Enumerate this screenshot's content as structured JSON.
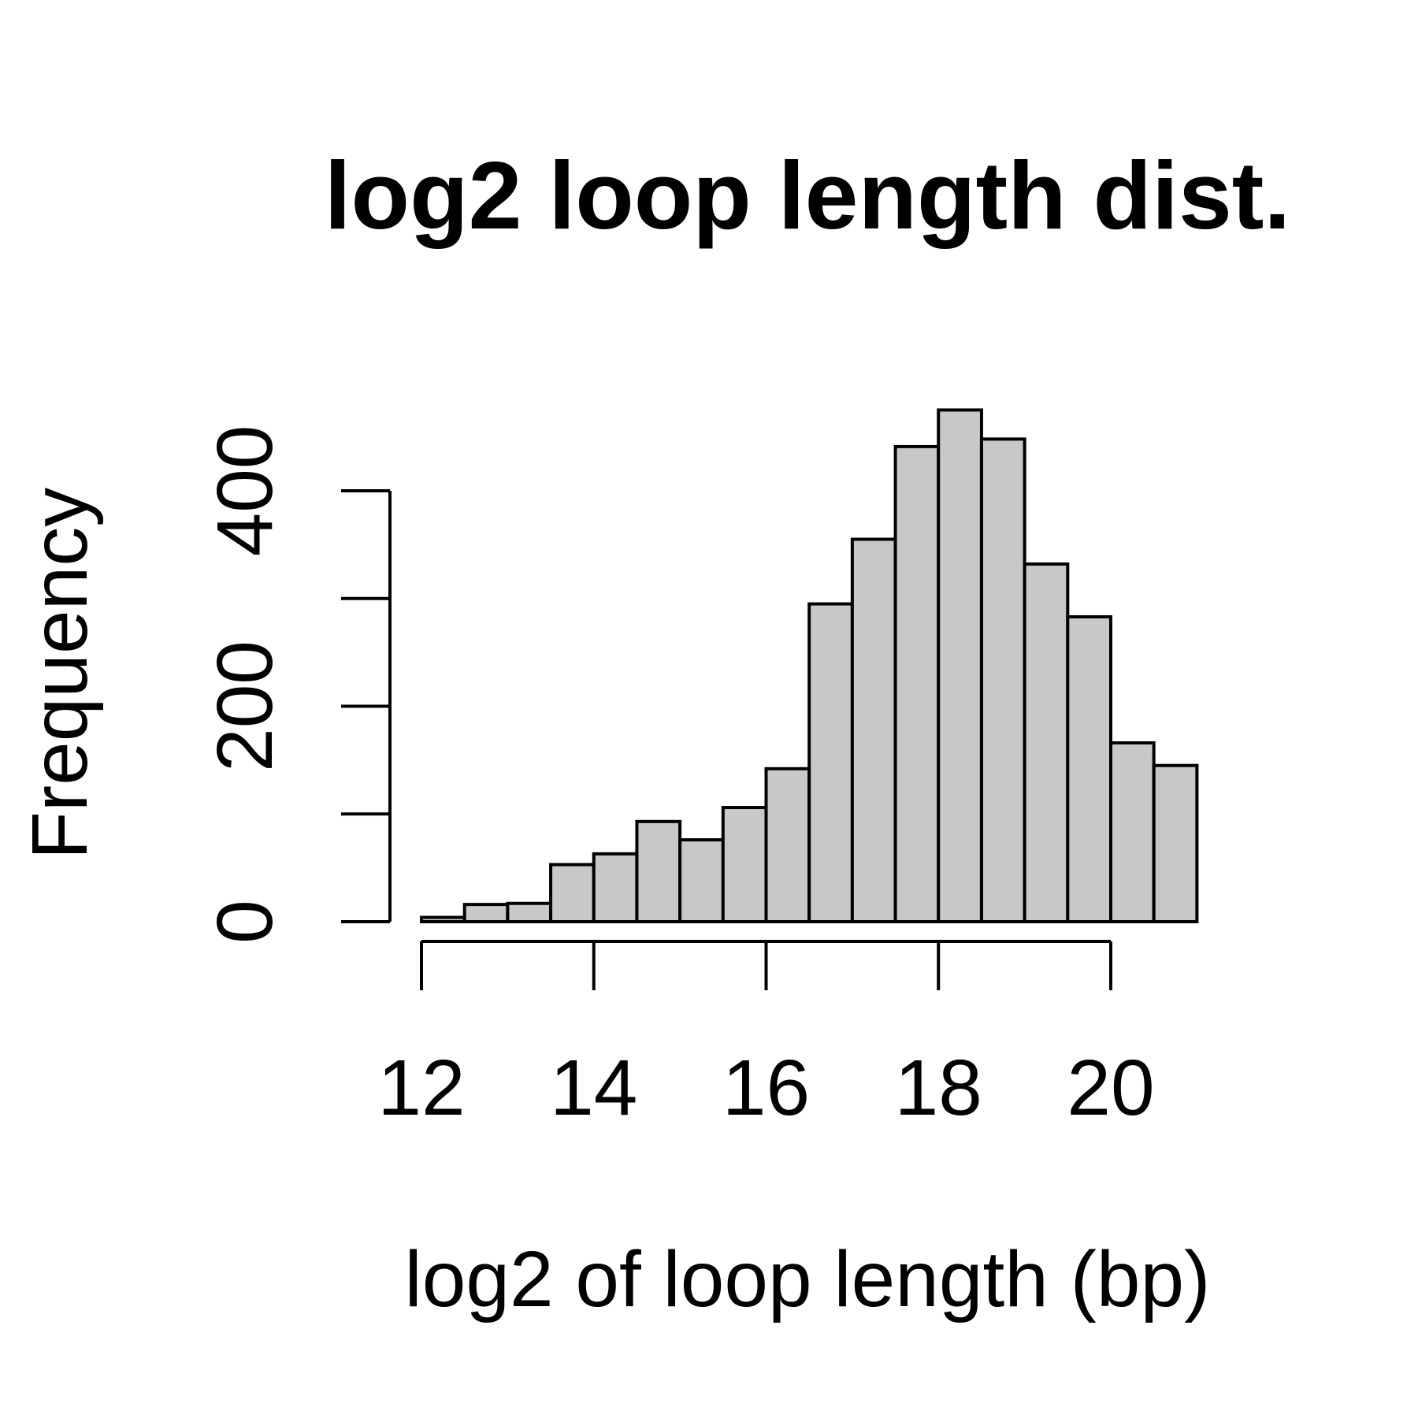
{
  "chart_data": {
    "type": "bar",
    "title": "log2 loop length dist.",
    "xlabel": "log2 of loop length (bp)",
    "ylabel": "Frequency",
    "xlim": [
      12,
      21
    ],
    "ylim": [
      0,
      400
    ],
    "x_ticks": [
      12,
      14,
      16,
      18,
      20
    ],
    "y_ticks": [
      0,
      100,
      200,
      300,
      400
    ],
    "y_tick_labels": [
      {
        "value": 0,
        "label": "0"
      },
      {
        "value": 200,
        "label": "200"
      },
      {
        "value": 400,
        "label": "400"
      }
    ],
    "bar_color": "#c8c8c8",
    "bin_edges": [
      12.0,
      12.5,
      13.0,
      13.5,
      14.0,
      14.5,
      15.0,
      15.5,
      16.0,
      16.5,
      17.0,
      17.5,
      18.0,
      18.5,
      19.0,
      19.5,
      20.0,
      20.5,
      21.0
    ],
    "values": [
      4,
      16,
      17,
      53,
      63,
      93,
      76,
      106,
      142,
      295,
      355,
      441,
      475,
      448,
      332,
      283,
      166,
      145
    ],
    "grid": false
  }
}
